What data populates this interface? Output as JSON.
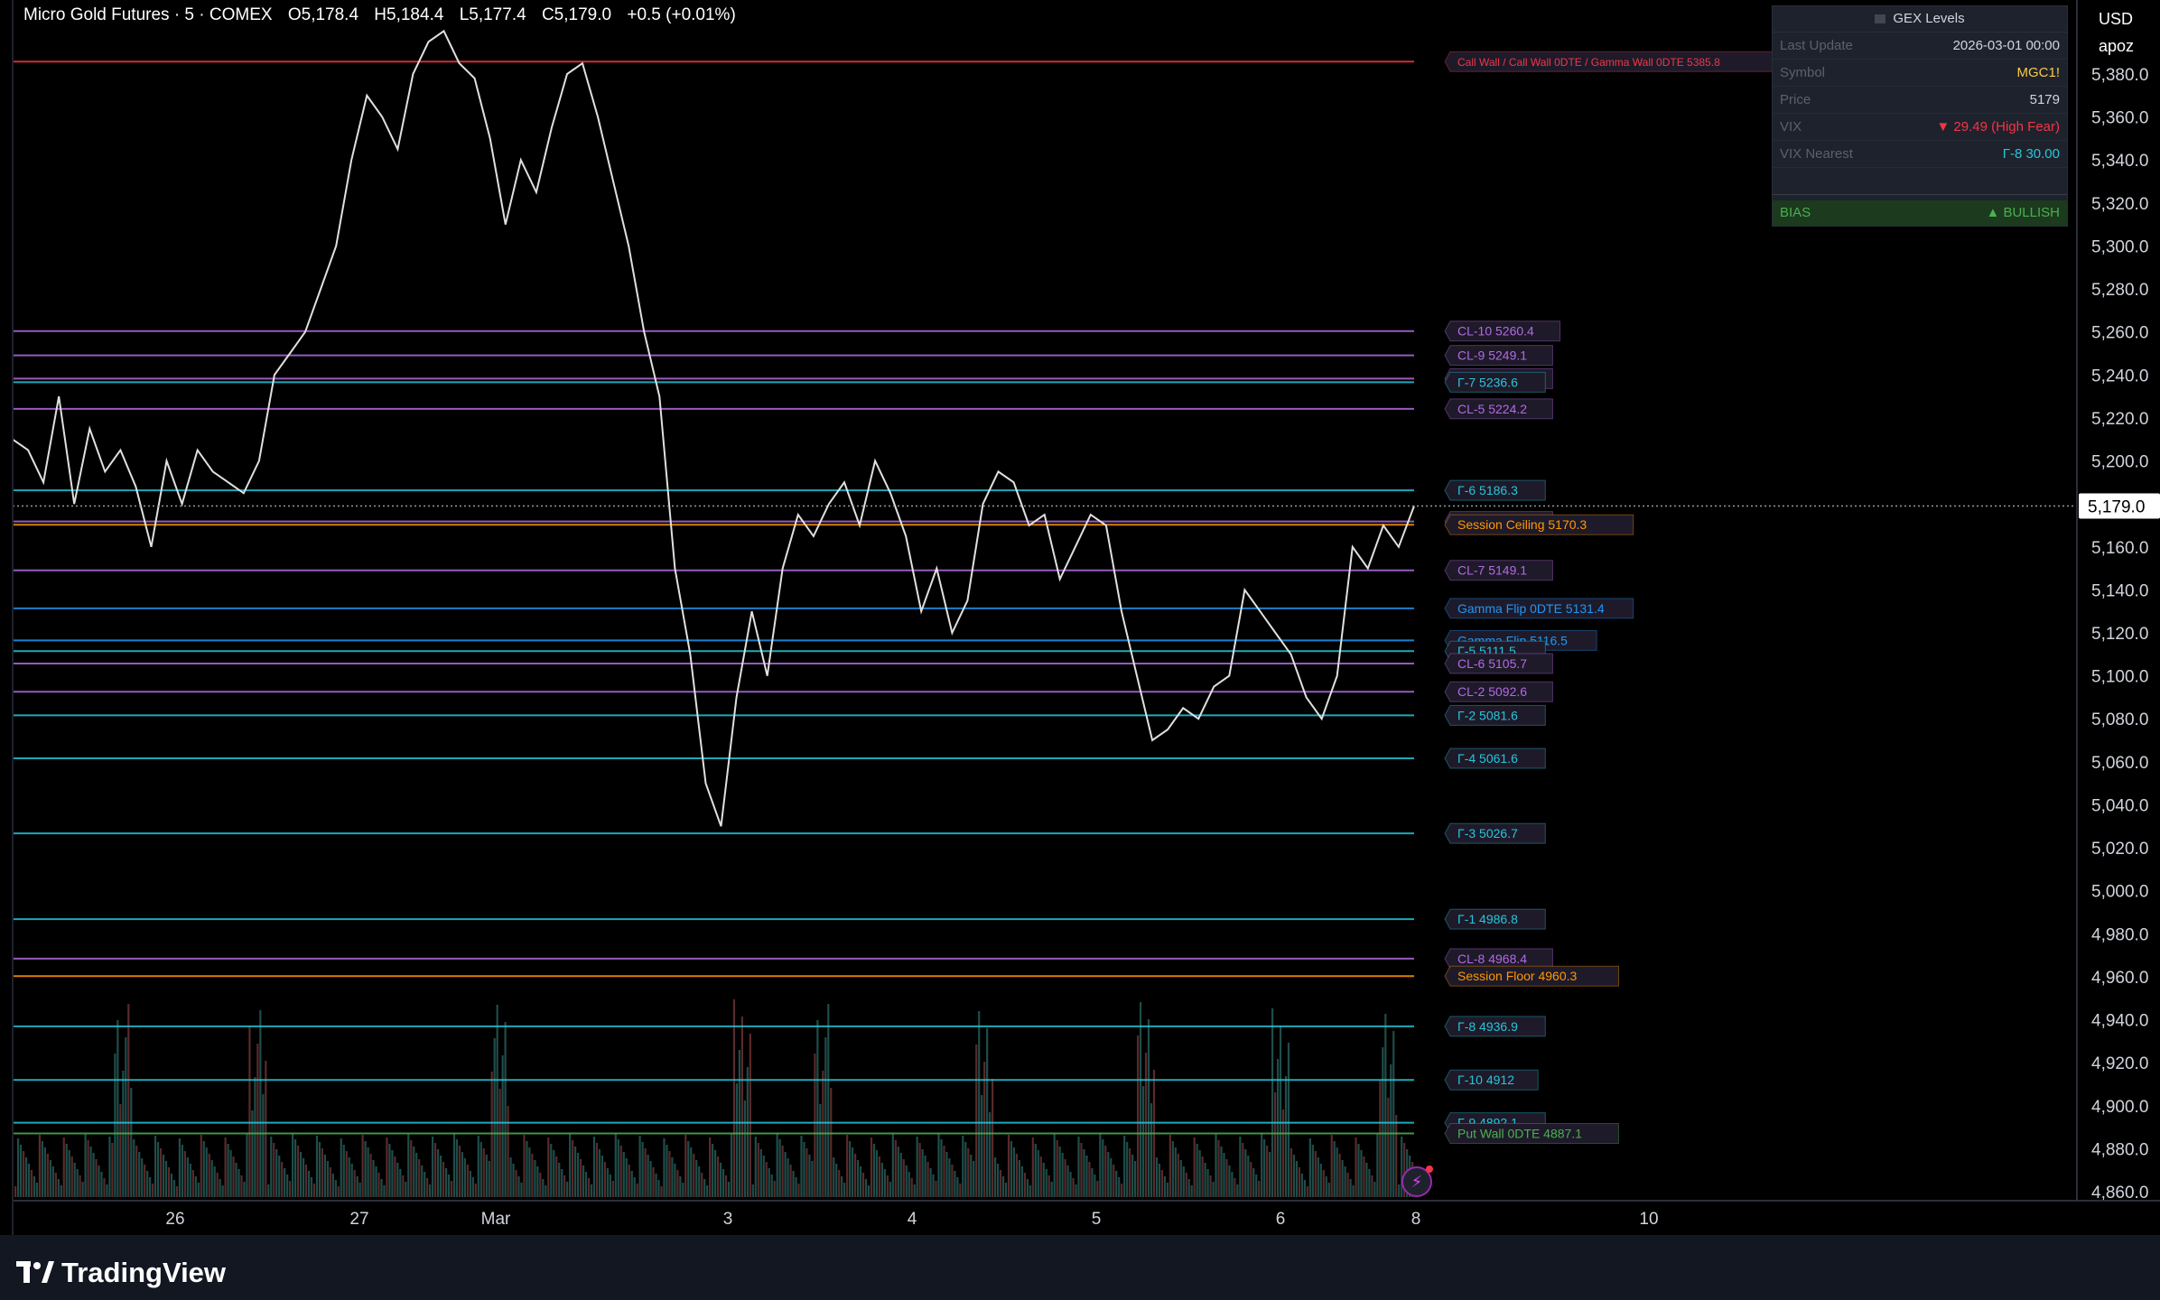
{
  "header": {
    "symbol": "Micro Gold Futures · 5 · COMEX",
    "open": "O5,178.4",
    "high": "H5,184.4",
    "low": "L5,177.4",
    "close": "C5,179.0",
    "change": "+0.5 (+0.01%)"
  },
  "scale": {
    "currency": "USD",
    "user": "apoz"
  },
  "gex_panel": {
    "title": "GEX Levels",
    "rows": [
      {
        "key": "Last Update",
        "value": "2026-03-01  00:00",
        "color": "#d1d4dc"
      },
      {
        "key": "Symbol",
        "value": "MGC1!",
        "color": "#f7c948"
      },
      {
        "key": "Price",
        "value": "5179",
        "color": "#d1d4dc"
      },
      {
        "key": "VIX",
        "value": "▼ 29.49  (High Fear)",
        "color": "#f23645"
      },
      {
        "key": "VIX Nearest",
        "value": "Γ-8 30.00",
        "color": "#26c6da"
      }
    ],
    "bias_key": "BIAS",
    "bias_value": "▲ BULLISH"
  },
  "brand": "TradingView",
  "chart_data": {
    "type": "line",
    "price_scale": {
      "min": 4860,
      "max": 5380,
      "current": "5,179.0"
    },
    "y_ticks": [
      "5,380.0",
      "5,360.0",
      "5,340.0",
      "5,320.0",
      "5,300.0",
      "5,280.0",
      "5,260.0",
      "5,240.0",
      "5,220.0",
      "5,200.0",
      "5,180.0",
      "5,160.0",
      "5,140.0",
      "5,120.0",
      "5,100.0",
      "5,080.0",
      "5,060.0",
      "5,040.0",
      "5,020.0",
      "5,000.0",
      "4,980.0",
      "4,960.0",
      "4,940.0",
      "4,920.0",
      "4,900.0",
      "4,880.0",
      "4,860.0"
    ],
    "x_ticks": [
      "26",
      "27",
      "Mar",
      "3",
      "4",
      "5",
      "6",
      "8",
      "10"
    ],
    "price_path": [
      5210,
      5205,
      5190,
      5230,
      5180,
      5215,
      5195,
      5205,
      5188,
      5160,
      5200,
      5180,
      5205,
      5195,
      5190,
      5185,
      5200,
      5240,
      5250,
      5260,
      5280,
      5300,
      5340,
      5370,
      5360,
      5345,
      5380,
      5395,
      5400,
      5385,
      5378,
      5350,
      5310,
      5340,
      5325,
      5355,
      5380,
      5385,
      5360,
      5330,
      5300,
      5260,
      5230,
      5150,
      5110,
      5050,
      5030,
      5090,
      5130,
      5100,
      5150,
      5175,
      5165,
      5180,
      5190,
      5170,
      5200,
      5185,
      5165,
      5130,
      5150,
      5120,
      5135,
      5180,
      5195,
      5190,
      5170,
      5175,
      5145,
      5160,
      5175,
      5170,
      5130,
      5100,
      5070,
      5075,
      5085,
      5080,
      5095,
      5100,
      5140,
      5130,
      5120,
      5110,
      5090,
      5080,
      5100,
      5160,
      5150,
      5170,
      5160,
      5179
    ],
    "levels": [
      {
        "label": "Call Wall / Call Wall 0DTE / Gamma Wall 0DTE  5385.8",
        "price": 5385.8,
        "color": "#f23645"
      },
      {
        "label": "CL-10  5260.4",
        "price": 5260.4,
        "color": "#b36ae2"
      },
      {
        "label": "CL-9  5249.1",
        "price": 5249.1,
        "color": "#b36ae2"
      },
      {
        "label": "CL-3  5238.3",
        "price": 5238.3,
        "color": "#b36ae2"
      },
      {
        "label": "Γ-7  5236.6",
        "price": 5236.6,
        "color": "#26c6da"
      },
      {
        "label": "CL-5  5224.2",
        "price": 5224.2,
        "color": "#b36ae2"
      },
      {
        "label": "Γ-6  5186.3",
        "price": 5186.3,
        "color": "#26c6da"
      },
      {
        "label": "CL-4  5171.8",
        "price": 5171.8,
        "color": "#b36ae2"
      },
      {
        "label": "Session Ceiling  5170.3",
        "price": 5170.3,
        "color": "#ff9800"
      },
      {
        "label": "CL-7  5149.1",
        "price": 5149.1,
        "color": "#b36ae2"
      },
      {
        "label": "Gamma Flip 0DTE  5131.4",
        "price": 5131.4,
        "color": "#2196f3"
      },
      {
        "label": "Gamma Flip  5116.5",
        "price": 5116.5,
        "color": "#2196f3"
      },
      {
        "label": "Γ-5  5111.5",
        "price": 5111.5,
        "color": "#26c6da"
      },
      {
        "label": "CL-6  5105.7",
        "price": 5105.7,
        "color": "#b36ae2"
      },
      {
        "label": "CL-2  5092.6",
        "price": 5092.6,
        "color": "#b36ae2"
      },
      {
        "label": "Γ-2  5081.6",
        "price": 5081.6,
        "color": "#26c6da"
      },
      {
        "label": "Γ-4  5061.6",
        "price": 5061.6,
        "color": "#26c6da"
      },
      {
        "label": "Γ-3  5026.7",
        "price": 5026.7,
        "color": "#26c6da"
      },
      {
        "label": "Γ-1  4986.8",
        "price": 4986.8,
        "color": "#26c6da"
      },
      {
        "label": "CL-8  4968.4",
        "price": 4968.4,
        "color": "#b36ae2"
      },
      {
        "label": "Session Floor  4960.3",
        "price": 4960.3,
        "color": "#ff9800"
      },
      {
        "label": "Γ-8  4936.9",
        "price": 4936.9,
        "color": "#26c6da"
      },
      {
        "label": "Γ-10  4912",
        "price": 4912,
        "color": "#26c6da"
      },
      {
        "label": "Γ-9  4892.1",
        "price": 4892.1,
        "color": "#26c6da"
      },
      {
        "label": "Put Wall 0DTE  4887.1",
        "price": 4887.1,
        "color": "#4caf50"
      }
    ]
  }
}
